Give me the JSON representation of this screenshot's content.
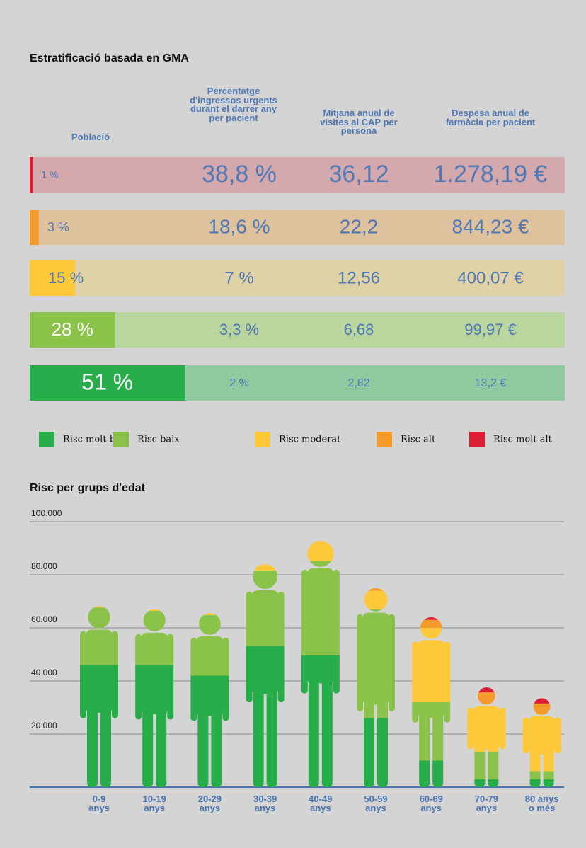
{
  "stratification": {
    "title": "Estratificació basada en GMA",
    "headers": [
      "Població",
      "Percentatge d'ingressos urgents durant el darrer any per pacient",
      "Mitjana anual de visites al CAP per persona",
      "Despesa anual de farmàcia per pacient"
    ],
    "rows": [
      {
        "population": 1,
        "population_label": "1 %",
        "cells": [
          "38,8 %",
          "36,12",
          "1.278,19 €"
        ],
        "bar_color": "#dc1e35",
        "row_color": "#d3a9ae"
      },
      {
        "population": 3,
        "population_label": "3 %",
        "cells": [
          "18,6 %",
          "22,2",
          "844,23 €"
        ],
        "bar_color": "#f49b2b",
        "row_color": "#dec19d"
      },
      {
        "population": 15,
        "population_label": "15 %",
        "cells": [
          "7 %",
          "12,56",
          "400,07 €"
        ],
        "bar_color": "#fdc93a",
        "row_color": "#dfd2a6"
      },
      {
        "population": 28,
        "population_label": "28 %",
        "cells": [
          "3,3 %",
          "6,68",
          "99,97 €"
        ],
        "bar_color": "#8bc34a",
        "row_color": "#b9d69f"
      },
      {
        "population": 51,
        "population_label": "51 %",
        "cells": [
          "2 %",
          "2,82",
          "13,2 €"
        ],
        "bar_color": "#27ae4b",
        "row_color": "#8fc9a0"
      }
    ]
  },
  "chart_data": {
    "type": "bar",
    "stacked": true,
    "title": "Risc per grups d'edat",
    "categories": [
      "0-9\nanys",
      "10-19\nanys",
      "20-29\nanys",
      "30-39\nanys",
      "40-49\nanys",
      "50-59\nanys",
      "60-69\nanys",
      "70-79\nanys",
      "80 anys\no més"
    ],
    "series": [
      {
        "name": "Risc molt baix",
        "color": "#27ae4b",
        "values": [
          46000,
          46000,
          42000,
          53300,
          49600,
          26000,
          10000,
          3000,
          3000
        ]
      },
      {
        "name": "Risc baix",
        "color": "#8bc34a",
        "values": [
          21700,
          20400,
          22800,
          28300,
          35700,
          41000,
          22000,
          10300,
          3000
        ]
      },
      {
        "name": "Risc moderat",
        "color": "#fdc93a",
        "values": [
          500,
          600,
          800,
          2400,
          7500,
          7000,
          28000,
          17900,
          21000
        ]
      },
      {
        "name": "Risc alt",
        "color": "#f49b2b",
        "values": [
          0,
          0,
          0,
          0,
          0,
          1000,
          3000,
          4500,
          4500
        ]
      },
      {
        "name": "Risc molt alt",
        "color": "#dc1e35",
        "values": [
          0,
          0,
          0,
          0,
          0,
          0,
          1000,
          1900,
          2000
        ]
      }
    ],
    "ylim": [
      0,
      100000
    ],
    "yticks": [
      {
        "value": 20000,
        "label": "20.000"
      },
      {
        "value": 40000,
        "label": "40.000"
      },
      {
        "value": 60000,
        "label": "60.000"
      },
      {
        "value": 80000,
        "label": "80.000"
      },
      {
        "value": 100000,
        "label": "100.000"
      }
    ],
    "grid": true
  }
}
